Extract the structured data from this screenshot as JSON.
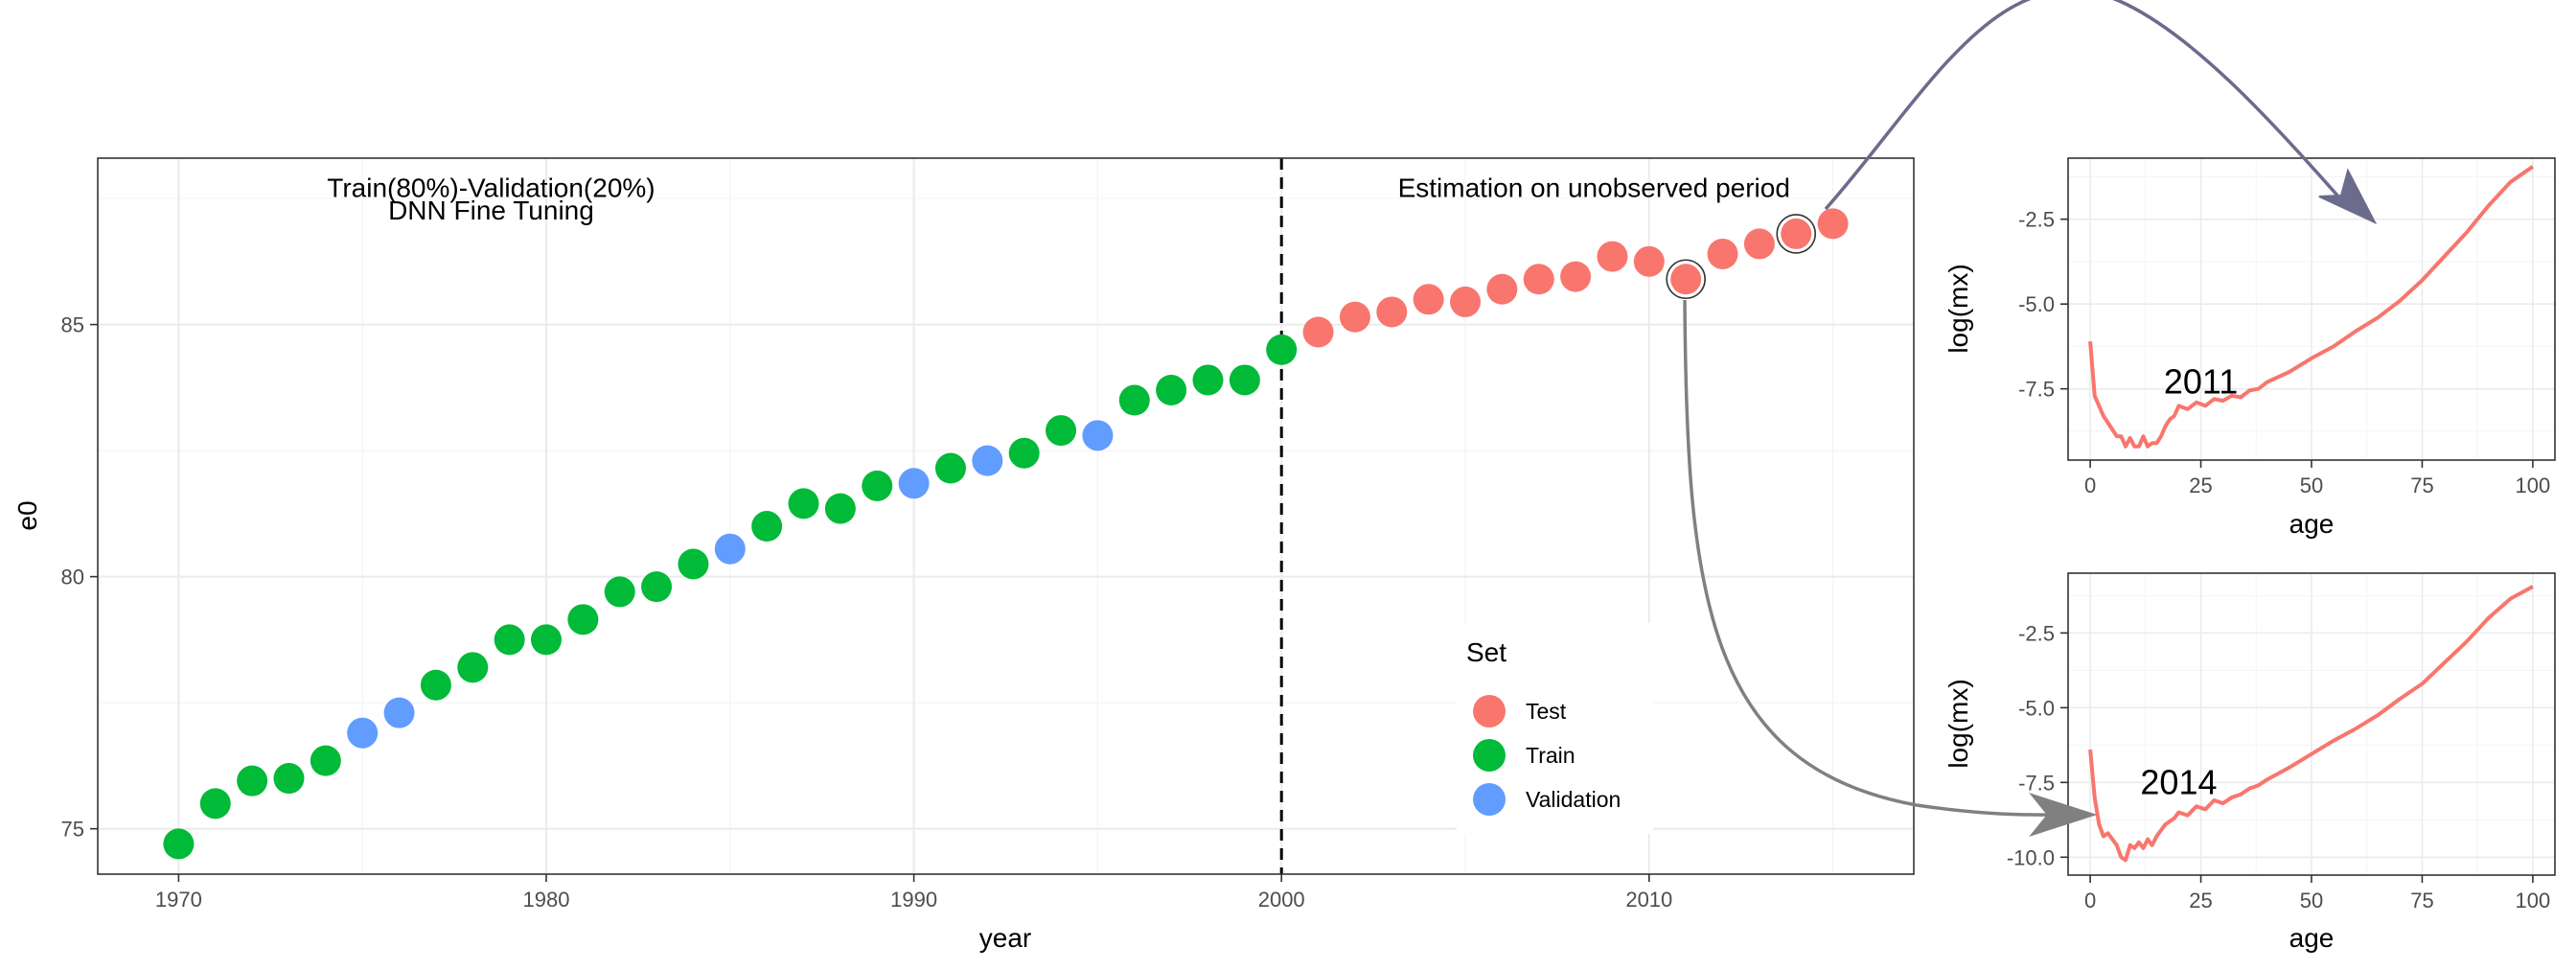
{
  "colors": {
    "Test": "#F8766D",
    "Train": "#00BA38",
    "Validation": "#619CFF",
    "panel_border": "#333333",
    "grid_major": "#EBEBEB",
    "grid_minor": "#F4F4F4",
    "axis_text": "#4D4D4D",
    "arrow_top": "#6B6B8C",
    "arrow_bottom": "#808080"
  },
  "chart_data": [
    {
      "type": "scatter",
      "xlabel": "year",
      "ylabel": "e0",
      "xlim": [
        1967.8,
        2017.2
      ],
      "ylim": [
        74.1,
        88.3
      ],
      "xticks": [
        1970,
        1980,
        1990,
        2000,
        2010
      ],
      "yticks": [
        75,
        80,
        85
      ],
      "grid": true,
      "vline": 2000,
      "annotations": [
        {
          "text": "Train(80%)-Validation(20%)",
          "x": 1978.5,
          "y": 87.7
        },
        {
          "text": "DNN Fine Tuning",
          "x": 1978.5,
          "y": 87.25
        },
        {
          "text": "Estimation on unobserved period",
          "x": 2008.5,
          "y": 87.7
        }
      ],
      "legend": {
        "title": "Set",
        "position": "inside-bottom-right",
        "entries": [
          "Test",
          "Train",
          "Validation"
        ]
      },
      "highlighted_years": [
        2011,
        2014
      ],
      "points": [
        {
          "x": 1970,
          "y": 74.7,
          "set": "Train"
        },
        {
          "x": 1971,
          "y": 75.5,
          "set": "Train"
        },
        {
          "x": 1972,
          "y": 75.95,
          "set": "Train"
        },
        {
          "x": 1973,
          "y": 76.0,
          "set": "Train"
        },
        {
          "x": 1974,
          "y": 76.35,
          "set": "Train"
        },
        {
          "x": 1975,
          "y": 76.9,
          "set": "Validation"
        },
        {
          "x": 1976,
          "y": 77.3,
          "set": "Validation"
        },
        {
          "x": 1977,
          "y": 77.85,
          "set": "Train"
        },
        {
          "x": 1978,
          "y": 78.2,
          "set": "Train"
        },
        {
          "x": 1979,
          "y": 78.75,
          "set": "Train"
        },
        {
          "x": 1980,
          "y": 78.75,
          "set": "Train"
        },
        {
          "x": 1981,
          "y": 79.15,
          "set": "Train"
        },
        {
          "x": 1982,
          "y": 79.7,
          "set": "Train"
        },
        {
          "x": 1983,
          "y": 79.8,
          "set": "Train"
        },
        {
          "x": 1984,
          "y": 80.25,
          "set": "Train"
        },
        {
          "x": 1985,
          "y": 80.55,
          "set": "Validation"
        },
        {
          "x": 1986,
          "y": 81.0,
          "set": "Train"
        },
        {
          "x": 1987,
          "y": 81.45,
          "set": "Train"
        },
        {
          "x": 1988,
          "y": 81.35,
          "set": "Train"
        },
        {
          "x": 1989,
          "y": 81.8,
          "set": "Train"
        },
        {
          "x": 1990,
          "y": 81.85,
          "set": "Validation"
        },
        {
          "x": 1991,
          "y": 82.15,
          "set": "Train"
        },
        {
          "x": 1992,
          "y": 82.3,
          "set": "Validation"
        },
        {
          "x": 1993,
          "y": 82.45,
          "set": "Train"
        },
        {
          "x": 1994,
          "y": 82.9,
          "set": "Train"
        },
        {
          "x": 1995,
          "y": 82.8,
          "set": "Validation"
        },
        {
          "x": 1996,
          "y": 83.5,
          "set": "Train"
        },
        {
          "x": 1997,
          "y": 83.7,
          "set": "Train"
        },
        {
          "x": 1998,
          "y": 83.9,
          "set": "Train"
        },
        {
          "x": 1999,
          "y": 83.9,
          "set": "Train"
        },
        {
          "x": 2000,
          "y": 84.5,
          "set": "Train"
        },
        {
          "x": 2001,
          "y": 84.85,
          "set": "Test"
        },
        {
          "x": 2002,
          "y": 85.15,
          "set": "Test"
        },
        {
          "x": 2003,
          "y": 85.25,
          "set": "Test"
        },
        {
          "x": 2004,
          "y": 85.5,
          "set": "Test"
        },
        {
          "x": 2005,
          "y": 85.45,
          "set": "Test"
        },
        {
          "x": 2006,
          "y": 85.7,
          "set": "Test"
        },
        {
          "x": 2007,
          "y": 85.9,
          "set": "Test"
        },
        {
          "x": 2008,
          "y": 85.95,
          "set": "Test"
        },
        {
          "x": 2009,
          "y": 86.35,
          "set": "Test"
        },
        {
          "x": 2010,
          "y": 86.25,
          "set": "Test"
        },
        {
          "x": 2011,
          "y": 85.9,
          "set": "Test"
        },
        {
          "x": 2012,
          "y": 86.4,
          "set": "Test"
        },
        {
          "x": 2013,
          "y": 86.6,
          "set": "Test"
        },
        {
          "x": 2014,
          "y": 86.8,
          "set": "Test"
        },
        {
          "x": 2015,
          "y": 87.0,
          "set": "Test"
        }
      ]
    },
    {
      "type": "line",
      "label": "2011",
      "label_at": [
        25,
        -7.3
      ],
      "xlabel": "age",
      "ylabel": "log(mx)",
      "xlim": [
        -5,
        105
      ],
      "ylim": [
        -9.6,
        -0.7
      ],
      "xticks": [
        0,
        25,
        50,
        75,
        100
      ],
      "yticks": [
        -2.5,
        -5.0,
        -7.5
      ],
      "grid": true,
      "color": "Test",
      "x": [
        0,
        1,
        2,
        3,
        4,
        5,
        6,
        7,
        8,
        9,
        10,
        11,
        12,
        13,
        14,
        15,
        16,
        17,
        18,
        19,
        20,
        22,
        24,
        26,
        28,
        30,
        32,
        34,
        36,
        38,
        40,
        45,
        50,
        55,
        60,
        65,
        70,
        75,
        80,
        85,
        90,
        95,
        100
      ],
      "y": [
        -6.1,
        -7.7,
        -8.0,
        -8.3,
        -8.5,
        -8.7,
        -8.9,
        -8.9,
        -9.2,
        -8.95,
        -9.2,
        -9.2,
        -8.9,
        -9.2,
        -9.1,
        -9.1,
        -8.9,
        -8.6,
        -8.4,
        -8.3,
        -8.0,
        -8.1,
        -7.9,
        -8.0,
        -7.8,
        -7.85,
        -7.7,
        -7.75,
        -7.55,
        -7.5,
        -7.3,
        -7.0,
        -6.6,
        -6.25,
        -5.8,
        -5.4,
        -4.9,
        -4.3,
        -3.6,
        -2.9,
        -2.1,
        -1.4,
        -0.95
      ]
    },
    {
      "type": "line",
      "label": "2014",
      "label_at": [
        20,
        -7.5
      ],
      "xlabel": "age",
      "ylabel": "log(mx)",
      "xlim": [
        -5,
        105
      ],
      "ylim": [
        -10.6,
        -0.5
      ],
      "xticks": [
        0,
        25,
        50,
        75,
        100
      ],
      "yticks": [
        -2.5,
        -5.0,
        -7.5,
        -10.0
      ],
      "grid": true,
      "color": "Test",
      "x": [
        0,
        1,
        2,
        3,
        4,
        5,
        6,
        7,
        8,
        9,
        10,
        11,
        12,
        13,
        14,
        15,
        16,
        17,
        18,
        19,
        20,
        22,
        24,
        26,
        28,
        30,
        32,
        34,
        36,
        38,
        40,
        45,
        50,
        55,
        60,
        65,
        70,
        75,
        80,
        85,
        90,
        95,
        100
      ],
      "y": [
        -6.4,
        -8.0,
        -8.9,
        -9.3,
        -9.2,
        -9.4,
        -9.6,
        -10.0,
        -10.1,
        -9.6,
        -9.7,
        -9.5,
        -9.7,
        -9.4,
        -9.6,
        -9.3,
        -9.1,
        -8.9,
        -8.8,
        -8.7,
        -8.5,
        -8.6,
        -8.3,
        -8.4,
        -8.1,
        -8.2,
        -8.0,
        -7.9,
        -7.7,
        -7.6,
        -7.4,
        -7.0,
        -6.55,
        -6.1,
        -5.7,
        -5.25,
        -4.7,
        -4.2,
        -3.5,
        -2.8,
        -2.0,
        -1.35,
        -0.95
      ]
    }
  ]
}
